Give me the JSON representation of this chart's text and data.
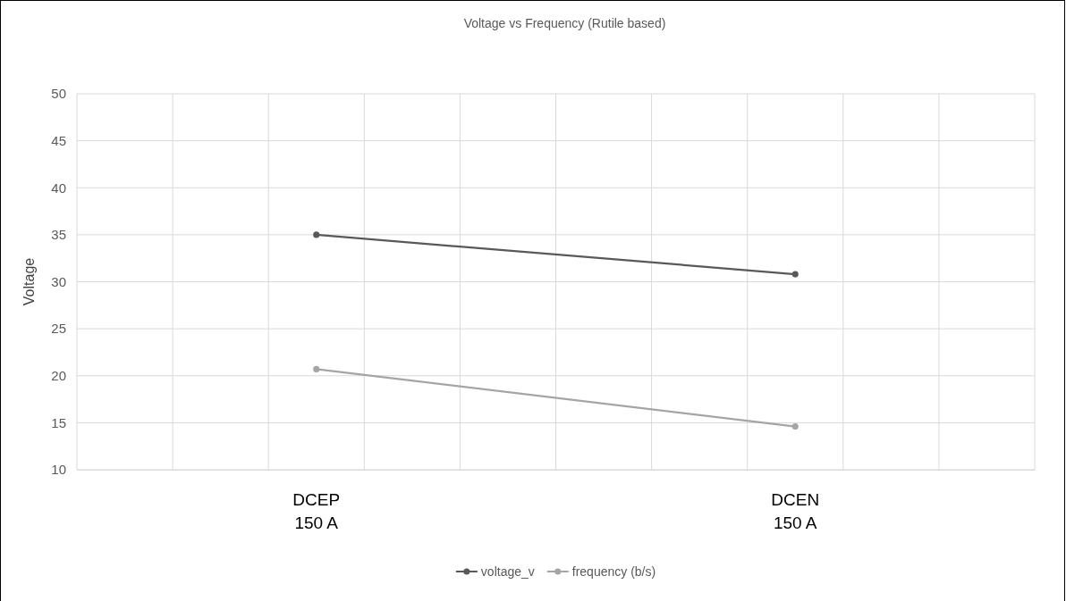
{
  "chart_data": {
    "type": "line",
    "title": "Voltage vs Frequency (Rutile based)",
    "ylabel": "Voltage",
    "categories": [
      null,
      null,
      "DCEP\n150 A",
      null,
      null,
      null,
      null,
      "DCEN\n150 A",
      null,
      null
    ],
    "series": [
      {
        "name": "voltage_v",
        "color": "#595959",
        "values": [
          null,
          null,
          35,
          null,
          null,
          null,
          null,
          30.8,
          null,
          null
        ]
      },
      {
        "name": "frequency (b/s)",
        "color": "#a5a5a5",
        "values": [
          null,
          null,
          20.7,
          null,
          null,
          null,
          null,
          14.6,
          null,
          null
        ]
      }
    ],
    "ylim": [
      10,
      50
    ],
    "yticks": [
      10,
      15,
      20,
      25,
      30,
      35,
      40,
      45,
      50
    ],
    "grid": true,
    "legend": "bottom",
    "marker": "circle",
    "line_style": "solid"
  }
}
